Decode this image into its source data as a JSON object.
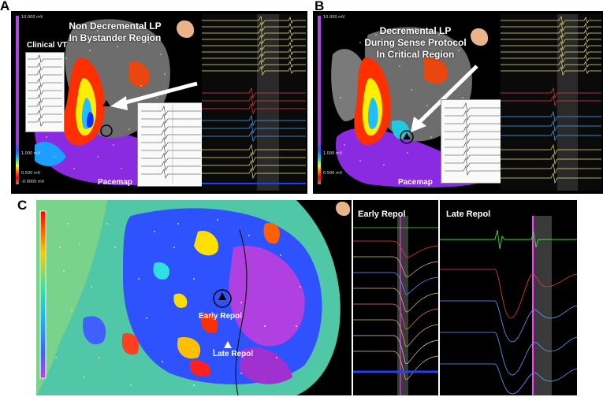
{
  "panels": {
    "a": {
      "letter": "A",
      "title_line1": "Non Decremental LP",
      "title_line2": "In Bystander Region",
      "inset_label": "Clinical VT",
      "pacemap_label": "Pacemap",
      "scale_top": "10.000 mV",
      "scale_mid": "1.000 mV",
      "scale_low": "0.500 mV",
      "scale_bottom": "-0.0000 mV"
    },
    "b": {
      "letter": "B",
      "title_line1": "Decremental LP",
      "title_line2": "During Sense Protocol",
      "title_line3": "In Critical Region",
      "pacemap_label": "Pacemap",
      "scale_top": "10.000 mV",
      "scale_mid": "1.000 mV",
      "scale_low": "0.500 mV"
    },
    "c": {
      "letter": "C",
      "early_label": "Early Repol",
      "late_label": "Late Repol",
      "egm_left_title": "Early Repol",
      "egm_right_title": "Late Repol"
    }
  },
  "colors": {
    "panel_bg": "#000000",
    "scale_purple": "#9a3bd8",
    "arrow": "#ffffff"
  }
}
